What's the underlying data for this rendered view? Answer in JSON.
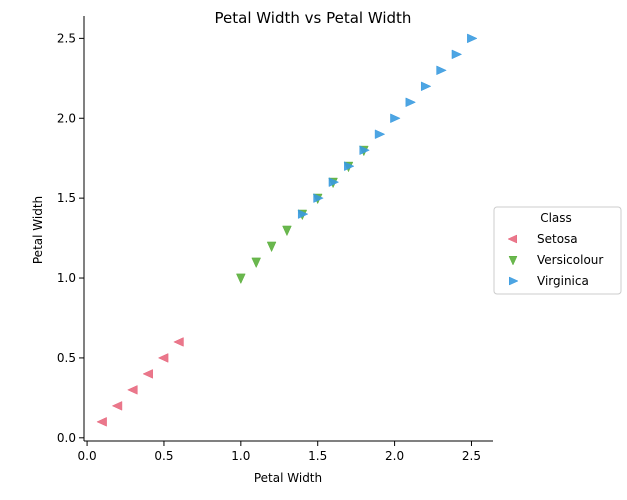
{
  "chart_data": {
    "type": "scatter",
    "title": "Petal Width vs Petal Width",
    "xlabel": "Petal Width",
    "ylabel": "Petal Width",
    "xlim": [
      -0.02,
      2.64
    ],
    "ylim": [
      -0.02,
      2.64
    ],
    "x_ticks": [
      "0.0",
      "0.5",
      "1.0",
      "1.5",
      "2.0",
      "2.5"
    ],
    "y_ticks": [
      "0.0",
      "0.5",
      "1.0",
      "1.5",
      "2.0",
      "2.5"
    ],
    "grid": false,
    "legend": {
      "title": "Class",
      "placement": "right"
    },
    "series": [
      {
        "name": "Setosa",
        "color": "#e8687e",
        "marker": "triangle-left",
        "x": [
          0.1,
          0.2,
          0.3,
          0.4,
          0.5,
          0.6
        ],
        "y": [
          0.1,
          0.2,
          0.3,
          0.4,
          0.5,
          0.6
        ]
      },
      {
        "name": "Versicolour",
        "color": "#5aaf3b",
        "marker": "triangle-down",
        "x": [
          1.0,
          1.1,
          1.2,
          1.3,
          1.4,
          1.5,
          1.6,
          1.7,
          1.8
        ],
        "y": [
          1.0,
          1.1,
          1.2,
          1.3,
          1.4,
          1.5,
          1.6,
          1.7,
          1.8
        ]
      },
      {
        "name": "Virginica",
        "color": "#3a9be0",
        "marker": "triangle-right",
        "x": [
          1.4,
          1.5,
          1.6,
          1.7,
          1.8,
          1.9,
          2.0,
          2.1,
          2.2,
          2.3,
          2.4,
          2.5
        ],
        "y": [
          1.4,
          1.5,
          1.6,
          1.7,
          1.8,
          1.9,
          2.0,
          2.1,
          2.2,
          2.3,
          2.4,
          2.5
        ]
      }
    ]
  }
}
